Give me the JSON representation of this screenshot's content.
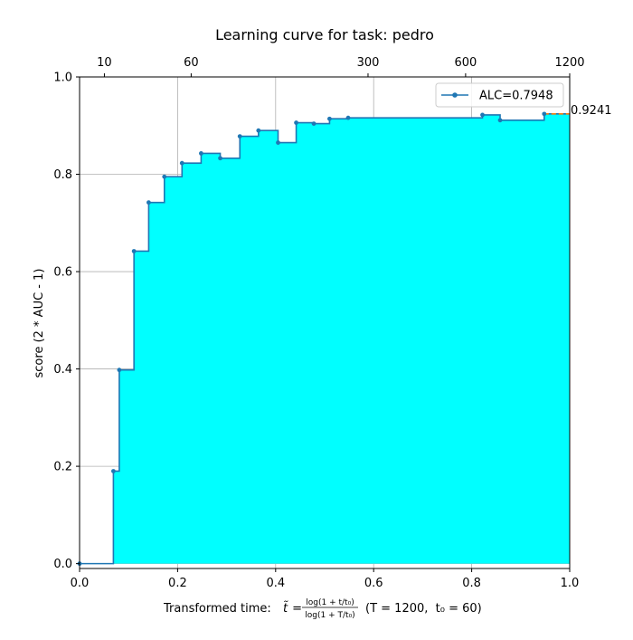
{
  "chart_data": {
    "type": "area",
    "title": "Learning curve for task: pedro",
    "xlabel": {
      "prefix": "Transformed time: ",
      "tilde_t": "t̃",
      "equals": " = ",
      "numerator": "log(1 + t/t₀)",
      "denominator": "log(1 + T/t₀)",
      "params": "(T = 1200,  t₀ = 60)"
    },
    "ylabel": "score (2 * AUC - 1)",
    "xlim": [
      0.0,
      1.0
    ],
    "ylim": [
      -0.01,
      1.0
    ],
    "x_ticks": [
      "0.0",
      "0.2",
      "0.4",
      "0.6",
      "0.8",
      "1.0"
    ],
    "y_ticks": [
      "0.0",
      "0.2",
      "0.4",
      "0.6",
      "0.8",
      "1.0"
    ],
    "top_axis": {
      "ticks": [
        "10",
        "60",
        "300",
        "600",
        "1200"
      ],
      "T": 1200,
      "t0": 60
    },
    "grid": true,
    "legend": {
      "placement": "upper-right",
      "label": "ALC=0.7948"
    },
    "final_score_label": "0.9241",
    "colors": {
      "line": "#1f77b4",
      "fill": "#00ffff",
      "extension": "#ff7f0e"
    },
    "series": [
      {
        "name": "ALC=0.7948",
        "x": [
          0.0,
          0.069,
          0.081,
          0.111,
          0.141,
          0.173,
          0.209,
          0.248,
          0.287,
          0.327,
          0.365,
          0.405,
          0.442,
          0.478,
          0.51,
          0.548,
          0.822,
          0.858,
          0.948,
          1.0
        ],
        "y": [
          0.0,
          0.19,
          0.398,
          0.642,
          0.742,
          0.795,
          0.823,
          0.843,
          0.833,
          0.878,
          0.89,
          0.865,
          0.906,
          0.904,
          0.914,
          0.916,
          0.922,
          0.911,
          0.924,
          0.924
        ]
      }
    ]
  }
}
